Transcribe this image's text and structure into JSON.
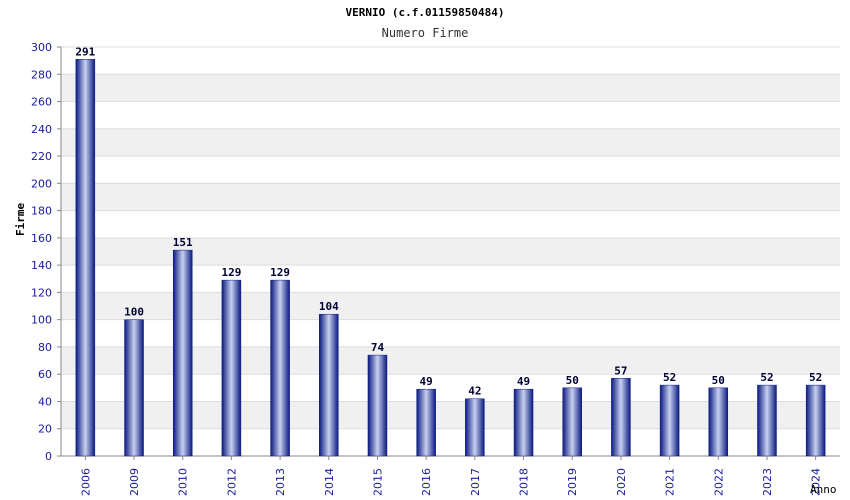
{
  "chart_data": {
    "type": "bar",
    "title": "VERNIO (c.f.01159850484)",
    "subtitle": "Numero Firme",
    "xlabel": "Anno",
    "ylabel": "Firme",
    "categories": [
      "2006",
      "2009",
      "2010",
      "2012",
      "2013",
      "2014",
      "2015",
      "2016",
      "2017",
      "2018",
      "2019",
      "2020",
      "2021",
      "2022",
      "2023",
      "2024"
    ],
    "values": [
      291,
      100,
      151,
      129,
      129,
      104,
      74,
      49,
      42,
      49,
      50,
      57,
      52,
      50,
      52,
      52
    ],
    "ylim": [
      0,
      300
    ],
    "yticks": [
      0,
      20,
      40,
      60,
      80,
      100,
      120,
      140,
      160,
      180,
      200,
      220,
      240,
      260,
      280,
      300
    ],
    "grid": true,
    "legend": "none",
    "colors": {
      "bar_dark": "#0a1a80",
      "bar_light": "#c8d0f0",
      "tick_label": "#1a1aa0",
      "value_label": "#000033",
      "band": "#f0f0f0",
      "gridline": "#dddddd"
    }
  }
}
